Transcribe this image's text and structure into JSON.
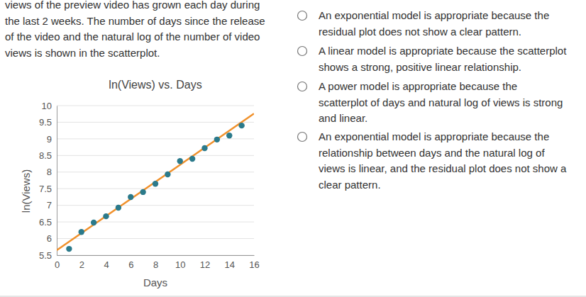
{
  "question": [
    "views of the preview video has grown each day during",
    "the last 2 weeks. The number of days since the release",
    "of the video and the natural log of the number of video",
    "views is shown in the scatterplot."
  ],
  "options": [
    [
      "An exponential model is appropriate because the",
      "residual plot does not show a clear pattern."
    ],
    [
      "A linear model is appropriate because the scatterplot",
      "shows a strong, positive linear relationship."
    ],
    [
      "A power model is appropriate because the",
      "scatterplot of days and natural log of views is strong",
      "and linear."
    ],
    [
      "An exponential model is appropriate because the",
      "relationship between days and the natural log of",
      "views is linear, and the residual plot does not show a",
      "clear pattern."
    ]
  ],
  "chart_data": {
    "type": "scatter",
    "title": "ln(Views) vs. Days",
    "x_label": "Days",
    "y_label": "ln(Views)",
    "xlim": [
      0,
      16
    ],
    "xticks": [
      0,
      2,
      4,
      6,
      8,
      10,
      12,
      14,
      16
    ],
    "ylim": [
      5.5,
      10
    ],
    "yticks": [
      5.5,
      6,
      6.5,
      7,
      7.5,
      8,
      8.5,
      9,
      9.5,
      10
    ],
    "grid": true,
    "series": [
      {
        "type": "scatter",
        "marker": "circle",
        "color": "#2b7a8b",
        "x": [
          1,
          2,
          3,
          4,
          5,
          6,
          7,
          8,
          9,
          10,
          11,
          12,
          13,
          14,
          15
        ],
        "values": [
          5.69,
          6.2,
          6.48,
          6.67,
          6.93,
          7.25,
          7.4,
          7.65,
          7.93,
          8.33,
          8.4,
          8.72,
          8.98,
          9.1,
          9.4
        ]
      },
      {
        "type": "line",
        "line_style": "solid",
        "color": "#f0912c",
        "x": [
          0,
          16
        ],
        "values": [
          5.65,
          9.76
        ]
      }
    ]
  }
}
